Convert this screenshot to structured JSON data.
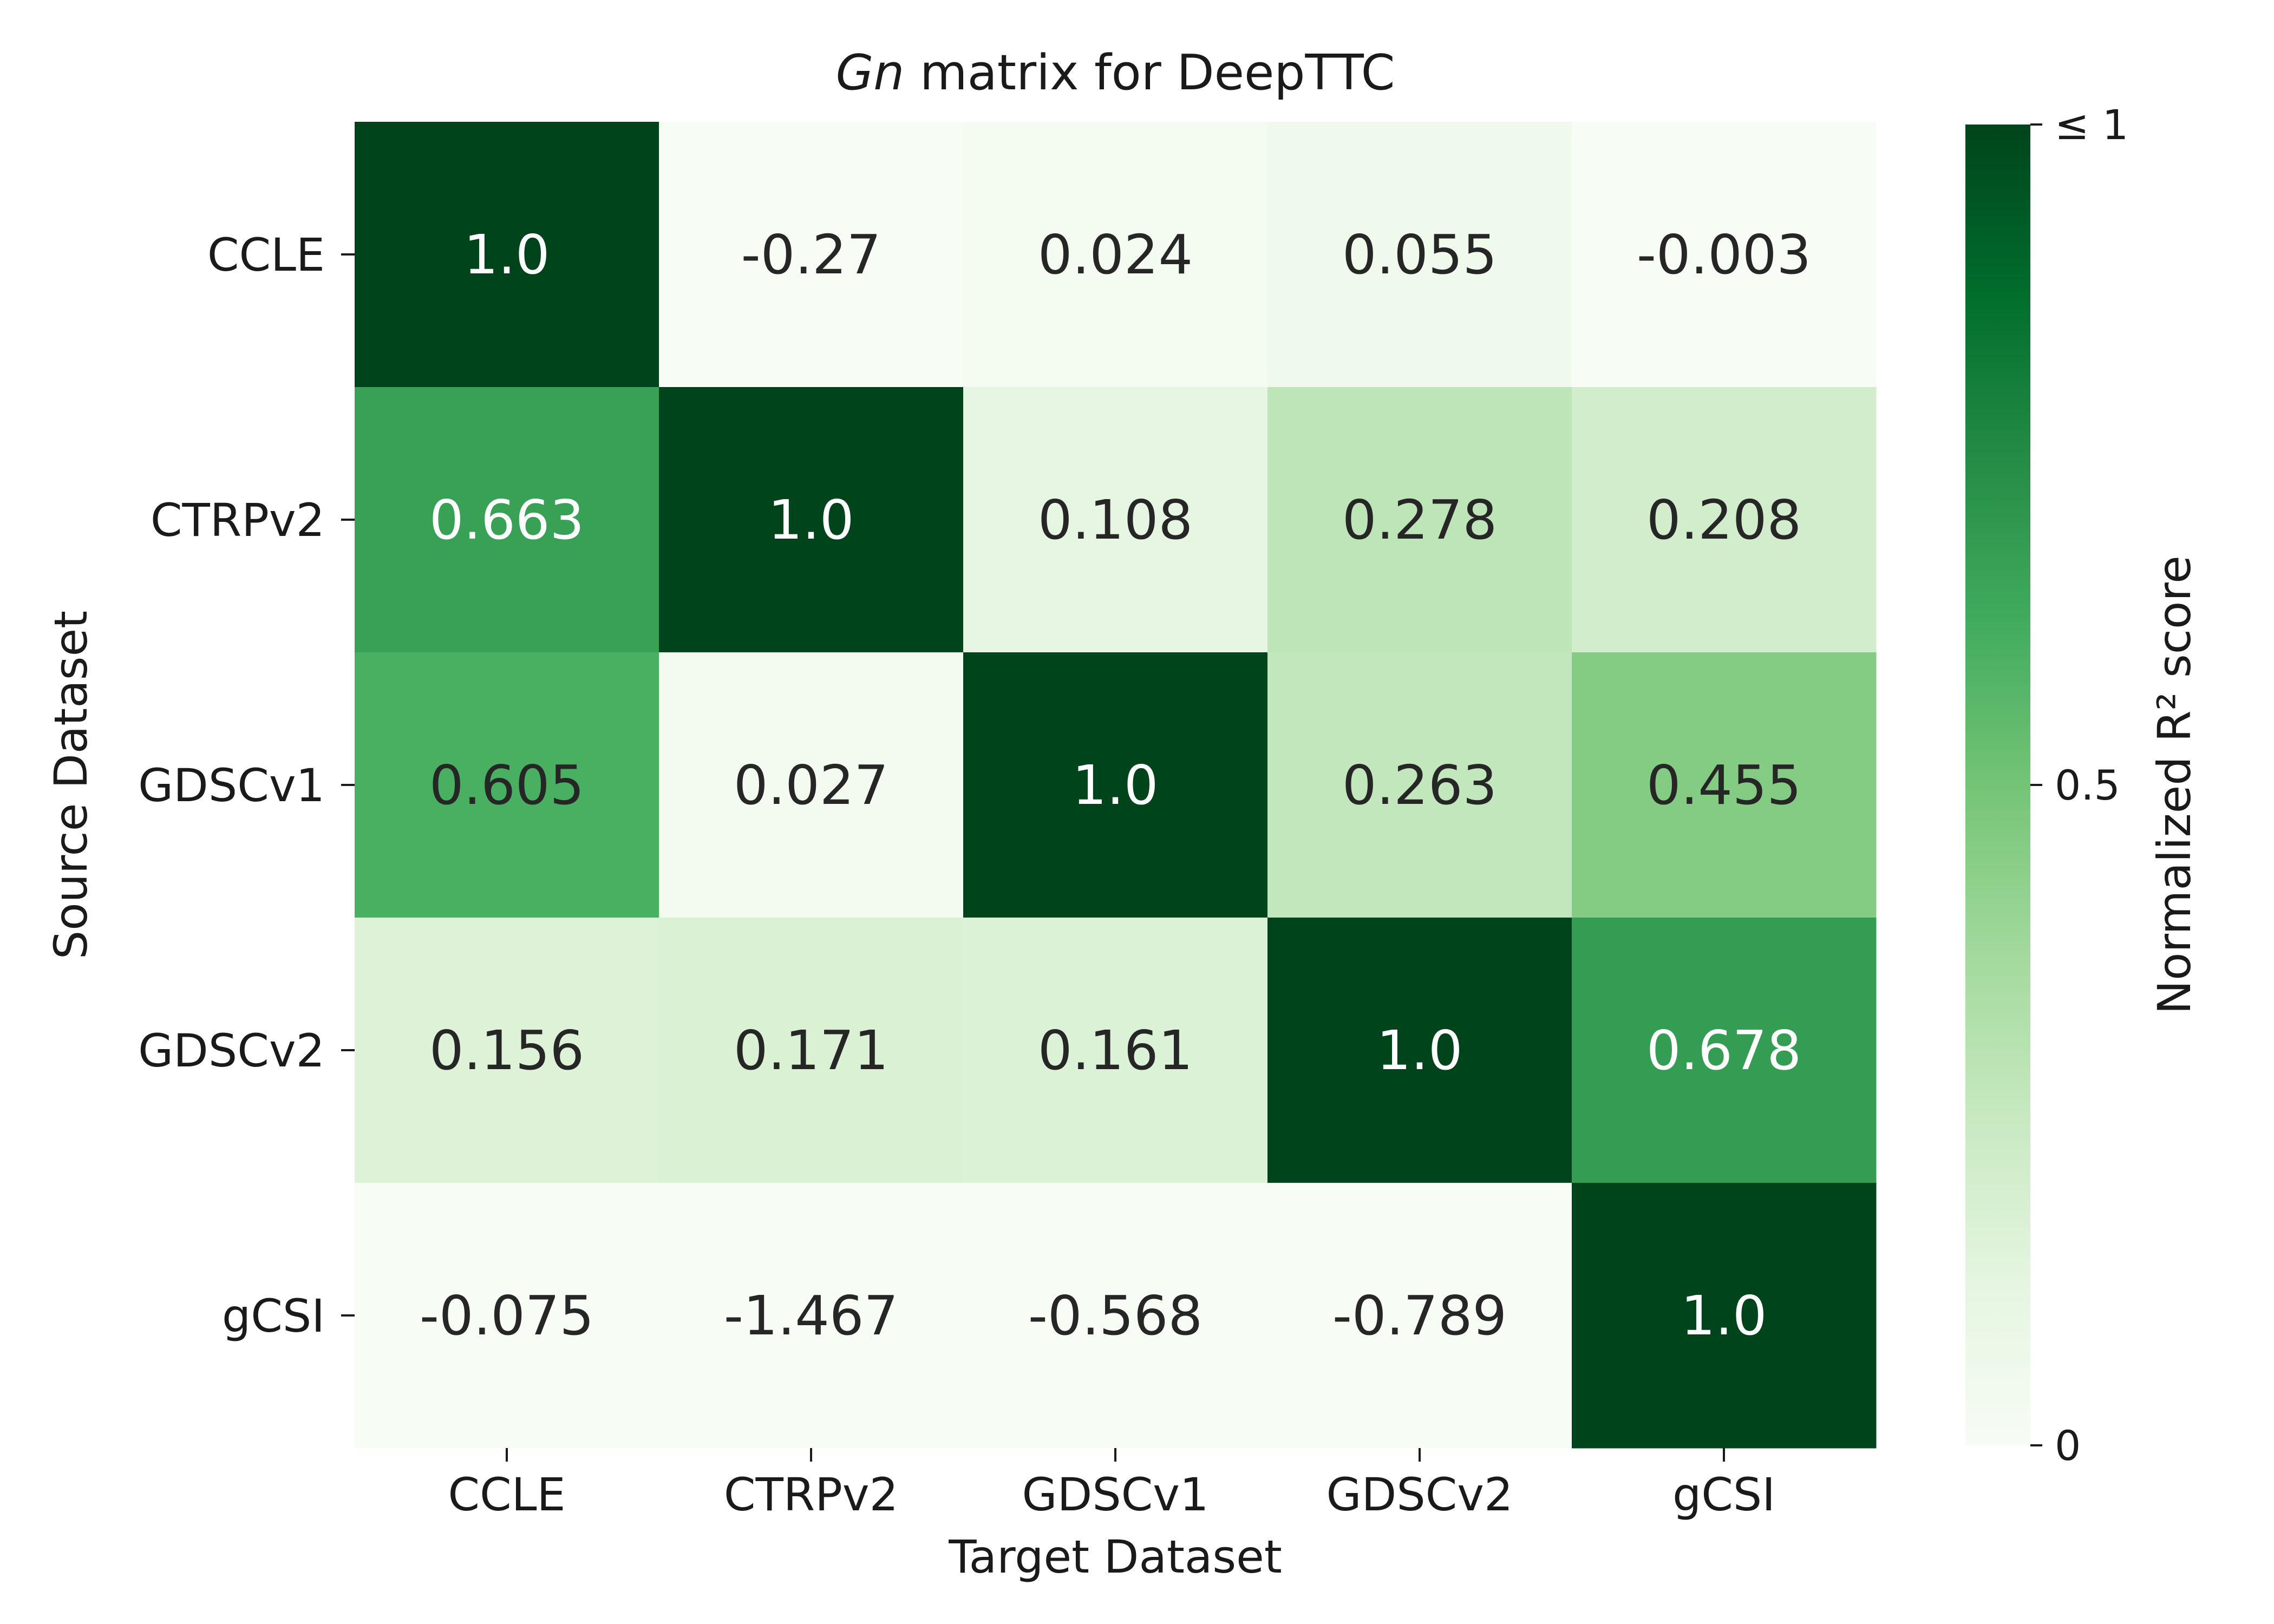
{
  "chart_data": {
    "type": "heatmap",
    "title_italic": "Gn",
    "title_rest": " matrix for DeepTTC",
    "xlabel": "Target Dataset",
    "ylabel": "Source Dataset",
    "x_categories": [
      "CCLE",
      "CTRPv2",
      "GDSCv1",
      "GDSCv2",
      "gCSI"
    ],
    "y_categories": [
      "CCLE",
      "CTRPv2",
      "GDSCv1",
      "GDSCv2",
      "gCSI"
    ],
    "values": [
      [
        1.0,
        -0.27,
        0.024,
        0.055,
        -0.003
      ],
      [
        0.663,
        1.0,
        0.108,
        0.278,
        0.208
      ],
      [
        0.605,
        0.027,
        1.0,
        0.263,
        0.455
      ],
      [
        0.156,
        0.171,
        0.161,
        1.0,
        0.678
      ],
      [
        -0.075,
        -1.467,
        -0.568,
        -0.789,
        1.0
      ]
    ],
    "cell_labels": [
      [
        "1.0",
        "-0.27",
        "0.024",
        "0.055",
        "-0.003"
      ],
      [
        "0.663",
        "1.0",
        "0.108",
        "0.278",
        "0.208"
      ],
      [
        "0.605",
        "0.027",
        "1.0",
        "0.263",
        "0.455"
      ],
      [
        "0.156",
        "0.171",
        "0.161",
        "1.0",
        "0.678"
      ],
      [
        "-0.075",
        "-1.467",
        "-0.568",
        "-0.789",
        "1.0"
      ]
    ],
    "color_scale": {
      "colormap": "Greens",
      "vmin": 0,
      "vmax": 1,
      "clip": true,
      "stops": [
        "#f7fcf5",
        "#e5f5e0",
        "#c7e9c0",
        "#a1d99b",
        "#74c476",
        "#41ab5d",
        "#238b45",
        "#006d2c",
        "#00441b"
      ]
    },
    "colorbar": {
      "label": "Normalized R² score",
      "ticks": [
        {
          "value": 0,
          "label": "0"
        },
        {
          "value": 0.5,
          "label": "0.5"
        },
        {
          "value": 1,
          "label": "≤ 1"
        }
      ]
    }
  }
}
